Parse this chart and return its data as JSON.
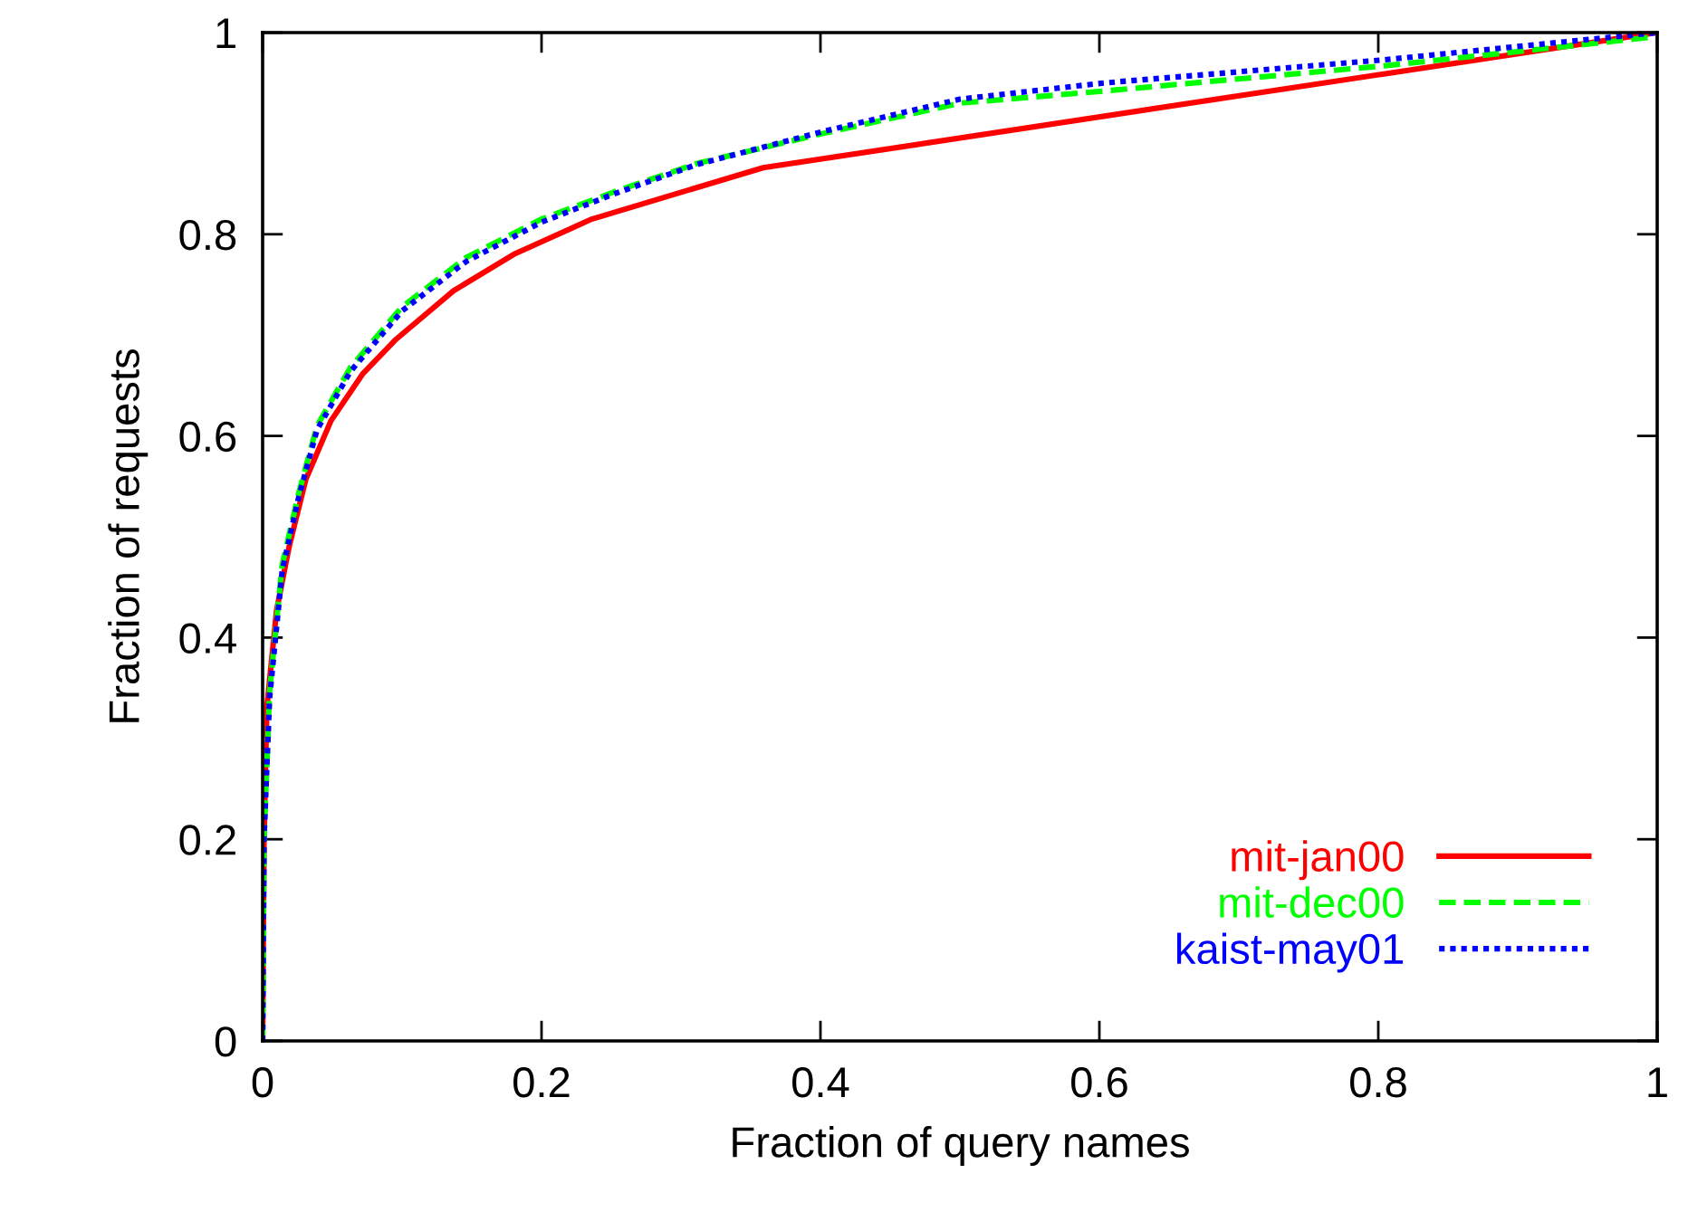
{
  "chart_data": {
    "type": "line",
    "xlabel": "Fraction of query names",
    "ylabel": "Fraction of requests",
    "xlim": [
      0,
      1
    ],
    "ylim": [
      0,
      1
    ],
    "xticks": [
      0,
      0.2,
      0.4,
      0.6,
      0.8,
      1
    ],
    "yticks": [
      0,
      0.2,
      0.4,
      0.6,
      0.8,
      1
    ],
    "grid": false,
    "legend": "bottom right",
    "marker": "none",
    "series": [
      {
        "name": "mit-jan00",
        "color": "#ff0000",
        "line_style": "solid",
        "x": [
          0,
          0.001,
          0.003,
          0.01,
          0.019,
          0.031,
          0.049,
          0.072,
          0.095,
          0.137,
          0.18,
          0.236,
          0.359,
          0.804,
          1
        ],
        "values": [
          0,
          0.198,
          0.33,
          0.427,
          0.49,
          0.557,
          0.615,
          0.662,
          0.695,
          0.744,
          0.78,
          0.815,
          0.866,
          0.959,
          1
        ]
      },
      {
        "name": "mit-dec00",
        "color": "#00ff00",
        "line_style": "dashed",
        "x": [
          0,
          0.001,
          0.005,
          0.014,
          0.026,
          0.039,
          0.063,
          0.1,
          0.146,
          0.2,
          0.252,
          0.311,
          0.402,
          0.5,
          0.603,
          0.804,
          1
        ],
        "values": [
          0,
          0.2,
          0.346,
          0.472,
          0.544,
          0.61,
          0.668,
          0.728,
          0.777,
          0.815,
          0.842,
          0.87,
          0.9,
          0.93,
          0.942,
          0.967,
          0.996
        ]
      },
      {
        "name": "kaist-may01",
        "color": "#0000ff",
        "line_style": "dotted",
        "x": [
          0,
          0.001,
          0.005,
          0.014,
          0.026,
          0.039,
          0.063,
          0.1,
          0.146,
          0.2,
          0.252,
          0.311,
          0.402,
          0.5,
          0.603,
          0.804,
          1
        ],
        "values": [
          0,
          0.2,
          0.34,
          0.466,
          0.54,
          0.606,
          0.664,
          0.724,
          0.773,
          0.812,
          0.84,
          0.869,
          0.902,
          0.934,
          0.95,
          0.973,
          1
        ]
      }
    ]
  }
}
